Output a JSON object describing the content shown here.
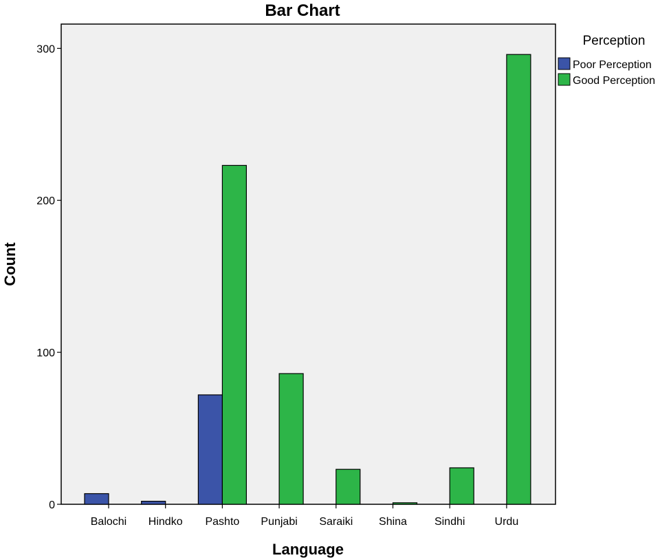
{
  "chart_data": {
    "type": "bar",
    "title": "Bar Chart",
    "xlabel": "Language",
    "ylabel": "Count",
    "categories": [
      "Balochi",
      "Hindko",
      "Pashto",
      "Punjabi",
      "Saraiki",
      "Shina",
      "Sindhi",
      "Urdu"
    ],
    "series": [
      {
        "name": "Poor Perception",
        "color": "#3b54a8",
        "values": [
          7,
          2,
          72,
          null,
          null,
          null,
          null,
          null
        ]
      },
      {
        "name": "Good Perception",
        "color": "#2db548",
        "values": [
          null,
          null,
          223,
          86,
          23,
          1,
          24,
          296
        ]
      }
    ],
    "ylim": [
      0,
      316
    ],
    "yticks": [
      0,
      100,
      200,
      300
    ],
    "legend": {
      "title": "Perception",
      "placement": "right"
    },
    "plot_background": "#f0f0f0",
    "grid": false
  }
}
